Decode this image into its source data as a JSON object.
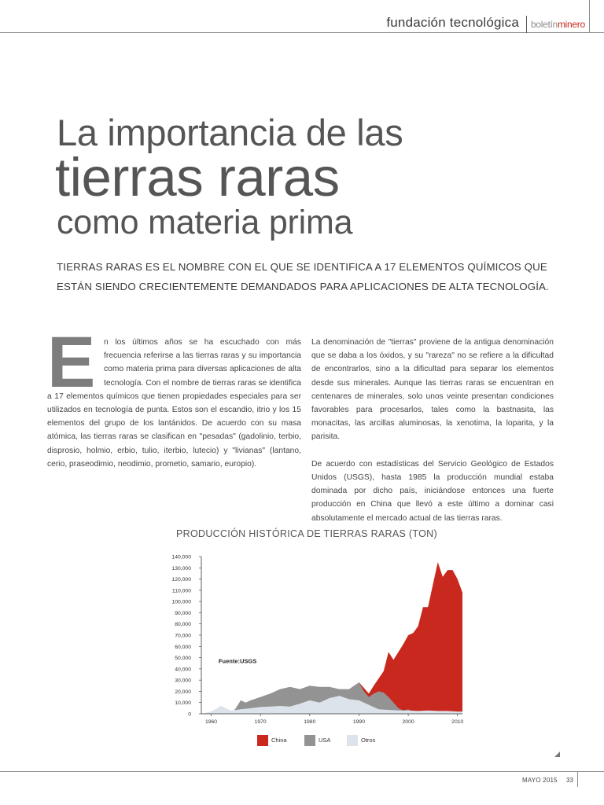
{
  "header": {
    "section": "fundación tecnológica",
    "brand_prefix": "boletín",
    "brand_suffix": "minero",
    "brand_color": "#c8281d"
  },
  "title": {
    "line1": "La importancia de las",
    "line2": "tierras raras",
    "line3": "como materia prima"
  },
  "lead": "TIERRAS RARAS ES EL NOMBRE CON EL QUE SE IDENTIFICA A 17 ELEMENTOS QUÍMICOS QUE ESTÁN SIENDO CRECIENTEMENTE DEMANDADOS PARA APLICACIONES DE ALTA TECNOLOGÍA.",
  "body": {
    "dropcap": "E",
    "left_p1": "n los últimos años se ha escuchado con más frecuencia referirse a las tierras raras y su importancia como materia prima para diversas aplicaciones de alta tecnología. Con el nombre de tierras raras se identifica a 17 elementos químicos que tienen propiedades especiales para ser utilizados en tecnología de punta. Estos son el escandio, itrio y los 15 elementos del grupo de los lantánidos. De acuerdo con su masa atómica, las tierras raras  se clasifican en \"pesadas\" (gadolinio, terbio, disprosio, holmio, erbio, tulio, iterbio, lutecio) y \"livianas\" (lantano, cerio, praseodimio, neodimio, prometio, samario, europio).",
    "right_p1": "La denominación de \"tierras\" proviene de la antigua denominación que se daba a los óxidos, y su \"rareza\" no se refiere a la dificultad de encontrarlos, sino a la dificultad para separar los elementos desde sus minerales. Aunque las tierras raras se encuentran en centenares de minerales, solo unos veinte presentan condiciones favorables para procesarlos, tales como la bastnasita, las monacitas, las arcillas aluminosas, la xenotima, la loparita, y la parisita.",
    "right_p2": "De acuerdo con estadísticas del Servicio Geológico de Estados Unidos (USGS), hasta 1985 la producción mundial estaba dominada por dicho país, iniciándose entonces una fuerte producción en China que llevó a este último a dominar casi absolutamente el mercado actual de las tierras raras."
  },
  "chart_title": "PRODUCCIÓN HISTÓRICA DE TIERRAS RARAS (TON)",
  "chart_data": {
    "type": "area",
    "title": "PRODUCCIÓN HISTÓRICA DE TIERRAS RARAS (TON)",
    "annotation": "Fuente:USGS",
    "xlabel": "",
    "ylabel": "",
    "xlim": [
      1958,
      2011
    ],
    "ylim": [
      0,
      140000
    ],
    "grid": false,
    "legend": "bottom",
    "x_ticks": [
      "1960",
      "1970",
      "1980",
      "1990",
      "2000",
      "2010"
    ],
    "y_ticks": [
      "0",
      "10,000",
      "20,000",
      "30,000",
      "40,000",
      "50,000",
      "60,000",
      "70,000",
      "80,000",
      "90,000",
      "100,000",
      "110,000",
      "120,000",
      "130,000",
      "140,000"
    ],
    "y_tick_values": [
      0,
      10000,
      20000,
      30000,
      40000,
      50000,
      60000,
      70000,
      80000,
      90000,
      100000,
      110000,
      120000,
      130000,
      140000
    ],
    "x_tick_values": [
      1960,
      1970,
      1980,
      1990,
      2000,
      2010
    ],
    "series": [
      {
        "name": "China",
        "color": "#c8281d",
        "points": [
          [
            1958,
            0
          ],
          [
            1975,
            0
          ],
          [
            1980,
            0
          ],
          [
            1982,
            1000
          ],
          [
            1984,
            3000
          ],
          [
            1986,
            12000
          ],
          [
            1988,
            18000
          ],
          [
            1989,
            22000
          ],
          [
            1990,
            28000
          ],
          [
            1992,
            18000
          ],
          [
            1993,
            25000
          ],
          [
            1995,
            38000
          ],
          [
            1996,
            55000
          ],
          [
            1997,
            48000
          ],
          [
            1998,
            55000
          ],
          [
            1999,
            62000
          ],
          [
            2000,
            70000
          ],
          [
            2001,
            72000
          ],
          [
            2002,
            78000
          ],
          [
            2003,
            95000
          ],
          [
            2004,
            95000
          ],
          [
            2005,
            115000
          ],
          [
            2006,
            135000
          ],
          [
            2007,
            122000
          ],
          [
            2008,
            128000
          ],
          [
            2009,
            128000
          ],
          [
            2010,
            120000
          ],
          [
            2011,
            108000
          ]
        ]
      },
      {
        "name": "USA",
        "color": "#939393",
        "points": [
          [
            1958,
            0
          ],
          [
            1964,
            0
          ],
          [
            1965,
            5000
          ],
          [
            1966,
            12000
          ],
          [
            1967,
            10000
          ],
          [
            1968,
            12000
          ],
          [
            1970,
            15000
          ],
          [
            1972,
            18000
          ],
          [
            1974,
            22000
          ],
          [
            1976,
            24000
          ],
          [
            1978,
            22000
          ],
          [
            1980,
            25000
          ],
          [
            1982,
            24000
          ],
          [
            1984,
            24000
          ],
          [
            1986,
            22000
          ],
          [
            1988,
            22000
          ],
          [
            1989,
            25000
          ],
          [
            1990,
            28000
          ],
          [
            1991,
            20000
          ],
          [
            1992,
            15000
          ],
          [
            1993,
            18000
          ],
          [
            1994,
            20000
          ],
          [
            1995,
            19000
          ],
          [
            1996,
            15000
          ],
          [
            1997,
            10000
          ],
          [
            1998,
            5000
          ],
          [
            1999,
            3000
          ],
          [
            2000,
            4000
          ],
          [
            2001,
            2000
          ],
          [
            2002,
            500
          ],
          [
            2003,
            0
          ],
          [
            2011,
            0
          ]
        ]
      },
      {
        "name": "Otros",
        "color": "#dde3eb",
        "points": [
          [
            1958,
            0
          ],
          [
            1960,
            2000
          ],
          [
            1962,
            7000
          ],
          [
            1964,
            3000
          ],
          [
            1966,
            4000
          ],
          [
            1968,
            5000
          ],
          [
            1970,
            6000
          ],
          [
            1972,
            6500
          ],
          [
            1974,
            7000
          ],
          [
            1976,
            6500
          ],
          [
            1978,
            9000
          ],
          [
            1980,
            12000
          ],
          [
            1982,
            10000
          ],
          [
            1984,
            14000
          ],
          [
            1986,
            16000
          ],
          [
            1988,
            13000
          ],
          [
            1990,
            12000
          ],
          [
            1992,
            8000
          ],
          [
            1994,
            4000
          ],
          [
            1996,
            3500
          ],
          [
            1998,
            3000
          ],
          [
            2000,
            3000
          ],
          [
            2002,
            2500
          ],
          [
            2004,
            3000
          ],
          [
            2006,
            2500
          ],
          [
            2008,
            2500
          ],
          [
            2010,
            2000
          ],
          [
            2011,
            2000
          ]
        ]
      }
    ]
  },
  "footer": {
    "date": "MAYO 2015",
    "page": "33"
  }
}
